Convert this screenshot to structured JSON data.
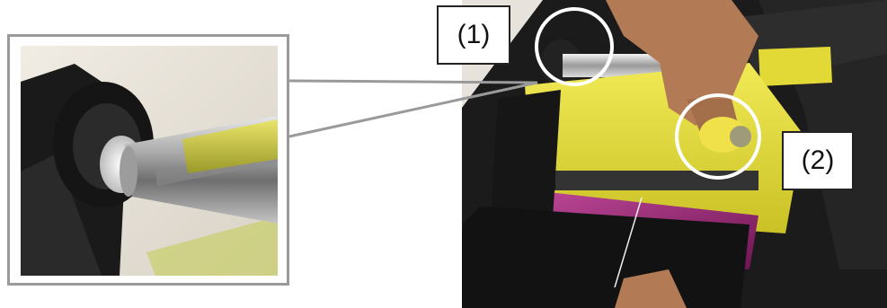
{
  "callouts": {
    "label_1": "(1)",
    "label_2": "(2)"
  },
  "colors": {
    "frame": "#9a9a9a",
    "circle": "#ffffff",
    "ribbon_yellow": "#e6df2e",
    "ribbon_magenta": "#a0207a",
    "printer_body": "#1c1c1c"
  }
}
